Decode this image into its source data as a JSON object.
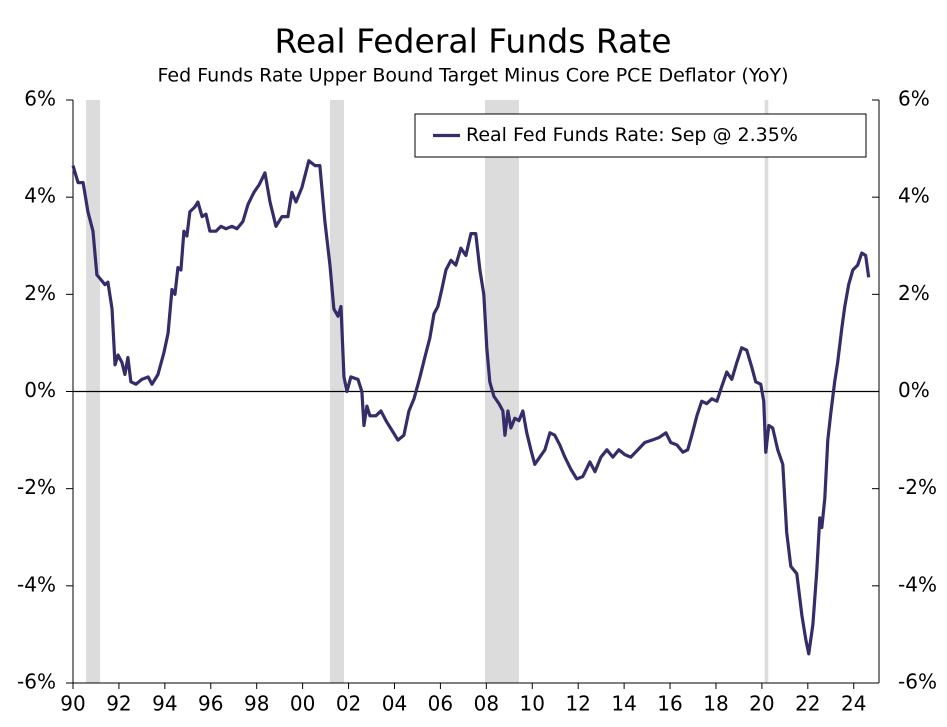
{
  "chart_data": {
    "type": "line",
    "title": "Real Federal Funds Rate",
    "subtitle": "Fed Funds Rate Upper Bound Target Minus Core PCE Deflator (YoY)",
    "legend": "upper right",
    "xlim": [
      1990,
      2025.1
    ],
    "xticks": [
      {
        "value": 1990,
        "label": "90"
      },
      {
        "value": 1992,
        "label": "92"
      },
      {
        "value": 1994,
        "label": "94"
      },
      {
        "value": 1996,
        "label": "96"
      },
      {
        "value": 1998,
        "label": "98"
      },
      {
        "value": 2000,
        "label": "00"
      },
      {
        "value": 2002,
        "label": "02"
      },
      {
        "value": 2004,
        "label": "04"
      },
      {
        "value": 2006,
        "label": "06"
      },
      {
        "value": 2008,
        "label": "08"
      },
      {
        "value": 2010,
        "label": "10"
      },
      {
        "value": 2012,
        "label": "12"
      },
      {
        "value": 2014,
        "label": "14"
      },
      {
        "value": 2016,
        "label": "16"
      },
      {
        "value": 2018,
        "label": "18"
      },
      {
        "value": 2020,
        "label": "20"
      },
      {
        "value": 2022,
        "label": "22"
      },
      {
        "value": 2024,
        "label": "24"
      }
    ],
    "ylim": [
      -6,
      6
    ],
    "yticks": [
      {
        "value": -6,
        "label": "-6%"
      },
      {
        "value": -4,
        "label": "-4%"
      },
      {
        "value": -2,
        "label": "-2%"
      },
      {
        "value": 0,
        "label": "0%"
      },
      {
        "value": 2,
        "label": "2%"
      },
      {
        "value": 4,
        "label": "4%"
      },
      {
        "value": 6,
        "label": "6%"
      }
    ],
    "y2lim": [
      -6,
      6
    ],
    "y2ticks": [
      {
        "value": -6,
        "label": "-6%"
      },
      {
        "value": -4,
        "label": "-4%"
      },
      {
        "value": -2,
        "label": "-2%"
      },
      {
        "value": 0,
        "label": "0%"
      },
      {
        "value": 2,
        "label": "2%"
      },
      {
        "value": 4,
        "label": "4%"
      },
      {
        "value": 6,
        "label": "6%"
      }
    ],
    "recessions": [
      [
        1990.57,
        1991.18
      ],
      [
        2001.19,
        2001.8
      ],
      [
        2007.94,
        2009.42
      ],
      [
        2020.12,
        2020.28
      ]
    ],
    "recession_color": "#dcdcdc",
    "x": [
      1990.0,
      1990.22,
      1990.44,
      1990.65,
      1990.87,
      1991.04,
      1991.22,
      1991.39,
      1991.52,
      1991.7,
      1991.83,
      1991.96,
      1992.13,
      1992.26,
      1992.39,
      1992.52,
      1992.74,
      1993.0,
      1993.27,
      1993.44,
      1993.7,
      1993.96,
      1994.14,
      1994.31,
      1994.44,
      1994.57,
      1994.7,
      1994.83,
      1994.96,
      1995.09,
      1995.31,
      1995.44,
      1995.62,
      1995.79,
      1995.96,
      1996.23,
      1996.44,
      1996.66,
      1996.92,
      1997.14,
      1997.4,
      1997.62,
      1997.88,
      1998.1,
      1998.36,
      1998.58,
      1998.84,
      1999.1,
      1999.36,
      1999.53,
      1999.71,
      1999.97,
      2000.27,
      2000.54,
      2000.75,
      2000.97,
      2001.19,
      2001.36,
      2001.54,
      2001.67,
      2001.8,
      2001.93,
      2002.1,
      2002.41,
      2002.58,
      2002.67,
      2002.8,
      2002.93,
      2003.19,
      2003.41,
      2003.63,
      2003.89,
      2004.15,
      2004.41,
      2004.63,
      2004.85,
      2005.11,
      2005.32,
      2005.54,
      2005.72,
      2005.89,
      2006.06,
      2006.24,
      2006.46,
      2006.67,
      2006.89,
      2007.11,
      2007.33,
      2007.54,
      2007.72,
      2007.89,
      2008.02,
      2008.15,
      2008.33,
      2008.55,
      2008.72,
      2008.81,
      2008.94,
      2009.07,
      2009.24,
      2009.42,
      2009.59,
      2009.76,
      2009.94,
      2010.11,
      2010.33,
      2010.55,
      2010.77,
      2010.98,
      2011.2,
      2011.42,
      2011.68,
      2011.94,
      2012.2,
      2012.51,
      2012.73,
      2012.99,
      2013.25,
      2013.51,
      2013.77,
      2014.03,
      2014.29,
      2014.6,
      2014.9,
      2015.21,
      2015.51,
      2015.82,
      2016.03,
      2016.3,
      2016.56,
      2016.77,
      2016.95,
      2017.17,
      2017.38,
      2017.6,
      2017.82,
      2018.04,
      2018.25,
      2018.47,
      2018.69,
      2018.91,
      2019.12,
      2019.34,
      2019.56,
      2019.73,
      2019.95,
      2020.08,
      2020.17,
      2020.3,
      2020.47,
      2020.69,
      2020.91,
      2021.08,
      2021.26,
      2021.52,
      2021.74,
      2021.91,
      2022.04,
      2022.22,
      2022.39,
      2022.52,
      2022.61,
      2022.74,
      2022.87,
      2023.0,
      2023.17,
      2023.3,
      2023.48,
      2023.61,
      2023.78,
      2023.96,
      2024.17,
      2024.35,
      2024.52,
      2024.65
    ],
    "series": [
      {
        "name": "Real Fed Funds Rate: Sep @ 2.35%",
        "color": "#352c6a",
        "values": [
          4.65,
          4.3,
          4.3,
          3.7,
          3.3,
          2.4,
          2.3,
          2.2,
          2.25,
          1.7,
          0.55,
          0.75,
          0.6,
          0.35,
          0.7,
          0.2,
          0.15,
          0.25,
          0.3,
          0.15,
          0.35,
          0.8,
          1.2,
          2.1,
          2.0,
          2.55,
          2.5,
          3.3,
          3.2,
          3.7,
          3.8,
          3.9,
          3.6,
          3.65,
          3.3,
          3.3,
          3.4,
          3.35,
          3.4,
          3.35,
          3.5,
          3.85,
          4.1,
          4.25,
          4.5,
          3.9,
          3.4,
          3.6,
          3.6,
          4.1,
          3.9,
          4.2,
          4.75,
          4.65,
          4.65,
          3.5,
          2.6,
          1.7,
          1.55,
          1.75,
          0.3,
          0.0,
          0.3,
          0.25,
          0.0,
          -0.7,
          -0.3,
          -0.5,
          -0.5,
          -0.4,
          -0.6,
          -0.8,
          -1.0,
          -0.9,
          -0.4,
          -0.15,
          0.3,
          0.7,
          1.1,
          1.6,
          1.75,
          2.1,
          2.5,
          2.7,
          2.6,
          2.95,
          2.8,
          3.25,
          3.25,
          2.5,
          2.0,
          0.9,
          0.2,
          -0.1,
          -0.25,
          -0.4,
          -0.9,
          -0.4,
          -0.75,
          -0.55,
          -0.6,
          -0.4,
          -0.85,
          -1.2,
          -1.5,
          -1.35,
          -1.2,
          -0.85,
          -0.9,
          -1.1,
          -1.35,
          -1.6,
          -1.8,
          -1.75,
          -1.45,
          -1.65,
          -1.35,
          -1.2,
          -1.35,
          -1.2,
          -1.3,
          -1.35,
          -1.2,
          -1.05,
          -1.0,
          -0.95,
          -0.85,
          -1.05,
          -1.1,
          -1.25,
          -1.2,
          -0.9,
          -0.5,
          -0.2,
          -0.25,
          -0.15,
          -0.2,
          0.1,
          0.4,
          0.25,
          0.6,
          0.9,
          0.85,
          0.5,
          0.2,
          0.15,
          -0.2,
          -1.25,
          -0.7,
          -0.75,
          -1.2,
          -1.5,
          -2.9,
          -3.6,
          -3.75,
          -4.6,
          -5.1,
          -5.4,
          -4.8,
          -3.7,
          -2.6,
          -2.8,
          -2.2,
          -1.0,
          -0.45,
          0.2,
          0.6,
          1.3,
          1.75,
          2.2,
          2.5,
          2.6,
          2.85,
          2.8,
          2.35
        ]
      }
    ]
  }
}
